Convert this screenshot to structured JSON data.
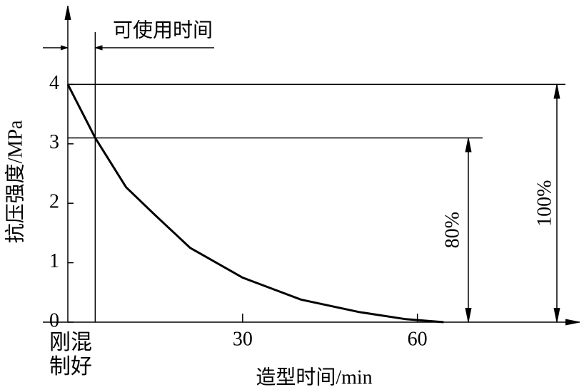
{
  "chart_data": {
    "type": "line",
    "x_label": "造型时间/min",
    "y_label": "抗压强度/MPa",
    "x": [
      0,
      4.7,
      10,
      15,
      21,
      30,
      40,
      50,
      58,
      64.5
    ],
    "values": [
      4,
      3.1,
      2.27,
      1.8,
      1.25,
      0.75,
      0.38,
      0.17,
      0.05,
      0
    ],
    "color": "#000000",
    "xlim": [
      0,
      87
    ],
    "xticks": [
      {
        "value": 0,
        "label": "刚混制好"
      },
      30,
      60
    ],
    "ylim": [
      0,
      5.3
    ],
    "yticks": [
      0,
      1,
      2,
      3,
      4
    ],
    "usable_time": {
      "label": "可使用时间",
      "value": 4.7
    },
    "levels": [
      {
        "value": 4,
        "label": "100%"
      },
      {
        "value": 3.1,
        "label": "80%"
      }
    ]
  }
}
